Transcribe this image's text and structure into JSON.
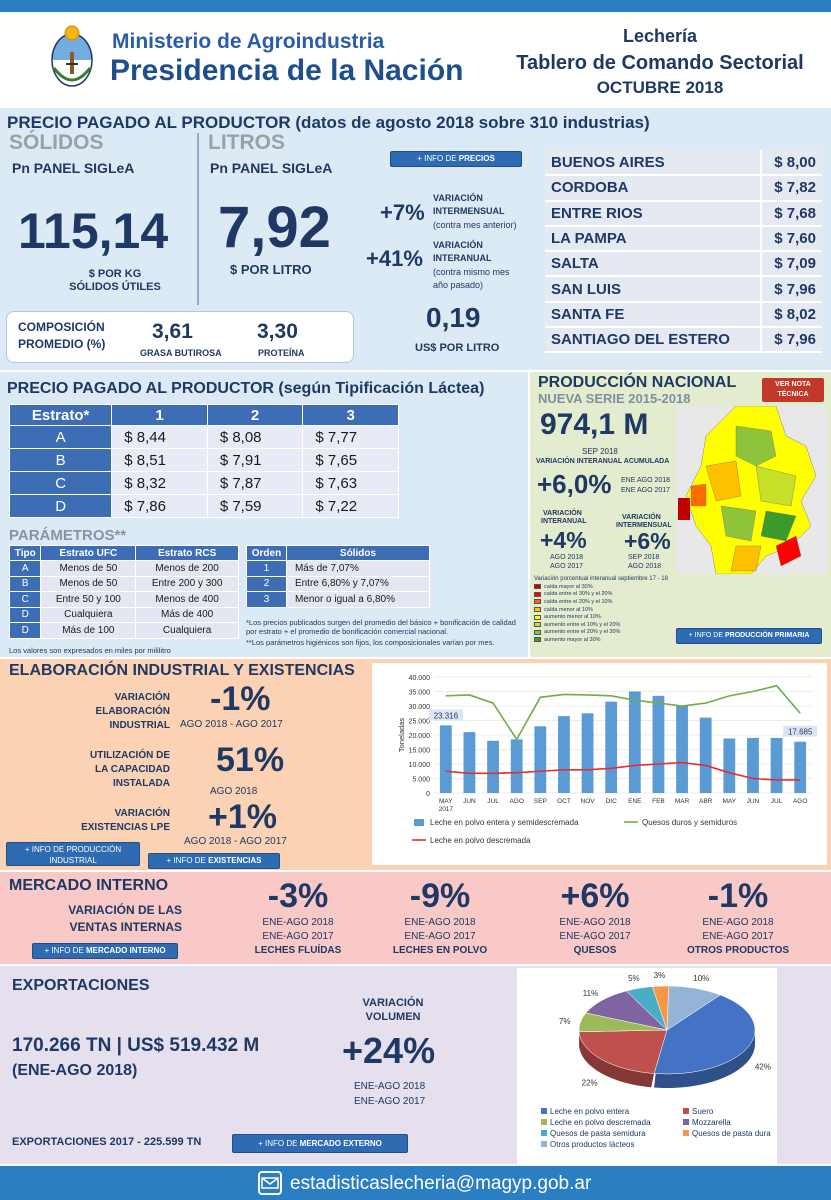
{
  "header": {
    "ministry_line1": "Ministerio de Agroindustria",
    "ministry_line2": "Presidencia de la Nación",
    "title1": "Lechería",
    "title2": "Tablero de Comando Sectorial",
    "title3": "OCTUBRE 2018"
  },
  "precio": {
    "heading": "PRECIO PAGADO AL PRODUCTOR (datos de agosto 2018 sobre 310 industrias)",
    "solidos_label": "SÓLIDOS",
    "solidos_sub": "Pn PANEL SIGLeA",
    "solidos_value": "115,14",
    "solidos_unit1": "$ POR KG",
    "solidos_unit2": "SÓLIDOS ÚTILES",
    "litros_label": "LITROS",
    "litros_sub": "Pn PANEL SIGLeA",
    "litros_value": "7,92",
    "litros_unit": "$ POR LITRO",
    "info_button_pre": "+ INFO DE ",
    "info_button_bold": "PRECIOS",
    "var1_value": "+7%",
    "var1_label1": "VARIACIÓN",
    "var1_label2": "INTERMENSUAL",
    "var1_label3": "(contra mes anterior)",
    "var2_value": "+41%",
    "var2_label1": "VARIACIÓN",
    "var2_label2": "INTERANUAL",
    "var2_label3": "(contra mismo mes",
    "var2_label4": "año pasado)",
    "usd_value": "0,19",
    "usd_label": "US$ POR LITRO",
    "comp_label1": "COMPOSICIÓN",
    "comp_label2": "PROMEDIO (%)",
    "grasa_value": "3,61",
    "grasa_label": "GRASA BUTIROSA",
    "prot_value": "3,30",
    "prot_label": "PROTEÍNA",
    "provinces": [
      {
        "name": "BUENOS AIRES",
        "price": "$ 8,00"
      },
      {
        "name": "CORDOBA",
        "price": "$ 7,82"
      },
      {
        "name": "ENTRE RIOS",
        "price": "$ 7,68"
      },
      {
        "name": "LA PAMPA",
        "price": "$ 7,60"
      },
      {
        "name": "SALTA",
        "price": "$ 7,09"
      },
      {
        "name": "SAN LUIS",
        "price": "$ 7,96"
      },
      {
        "name": "SANTA FE",
        "price": "$ 8,02"
      },
      {
        "name": "SANTIAGO DEL ESTERO",
        "price": "$ 7,96"
      }
    ]
  },
  "tipificacion": {
    "heading": "PRECIO PAGADO AL PRODUCTOR (según Tipificación Láctea)",
    "headers": [
      "Estrato*",
      "1",
      "2",
      "3"
    ],
    "rows": [
      [
        "A",
        "$ 8,44",
        "$ 8,08",
        "$ 7,77"
      ],
      [
        "B",
        "$ 8,51",
        "$ 7,91",
        "$ 7,65"
      ],
      [
        "C",
        "$ 8,32",
        "$ 7,87",
        "$ 7,63"
      ],
      [
        "D",
        "$ 7,86",
        "$ 7,59",
        "$ 7,22"
      ]
    ],
    "param_heading": "PARÁMETROS**",
    "param_headers": [
      "Tipo",
      "Estrato UFC",
      "Estrato RCS"
    ],
    "param_rows": [
      [
        "A",
        "Menos de 50",
        "Menos de 200"
      ],
      [
        "B",
        "Menos de 50",
        "Entre 200 y 300"
      ],
      [
        "C",
        "Entre 50 y 100",
        "Menos de 400"
      ],
      [
        "D",
        "Cualquiera",
        "Más de 400"
      ],
      [
        "D",
        "Más de 100",
        "Cualquiera"
      ]
    ],
    "solidos_headers": [
      "Orden",
      "Sólidos"
    ],
    "solidos_rows": [
      [
        "1",
        "Más de 7,07%"
      ],
      [
        "2",
        "Entre 6,80% y 7,07%"
      ],
      [
        "3",
        "Menor o igual a 6,80%"
      ]
    ],
    "note1": "*Los precios publicados surgen del promedio del básico + bonificación de calidad por estrato + el promedio de bonificación comercial nacional.",
    "note2": "**Los parámetros higiénicos son fijos, los composicionales varían por mes.",
    "note3": "Los valores son expresados en miles por mililitro"
  },
  "produccion": {
    "heading": "PRODUCCIÓN NACIONAL",
    "subheading": "NUEVA SERIE 2015-2018",
    "nota_button1": "VER NOTA",
    "nota_button2": "TÉCNICA",
    "value": "974,1 M",
    "value_period": "SEP 2018",
    "acum_label": "VARIACIÓN INTERANUAL ACUMULADA",
    "acum_value": "+6,0%",
    "acum_period1": "ENE AGO 2018",
    "acum_period2": "ENE AGO 2017",
    "inter_label1": "VARIACIÓN",
    "inter_label2": "INTERANUAL",
    "inter_value": "+4%",
    "inter_period1": "AGO 2018",
    "inter_period2": "AGO 2017",
    "mens_label1": "VARIACIÓN",
    "mens_label2": "INTERMENSUAL",
    "mens_value": "+6%",
    "mens_period1": "SEP 2018",
    "mens_period2": "AGO 2018",
    "legend_title": "Variación porcentual interanual septiembre 17 - 18",
    "legend": [
      {
        "label": "caída mayor al 30%",
        "color": "#c00000"
      },
      {
        "label": "caída entre el 30% y el 20%",
        "color": "#ff0000"
      },
      {
        "label": "caída entre el 20% y el 10%",
        "color": "#ff6a00"
      },
      {
        "label": "caída menor al 10%",
        "color": "#ffc000"
      },
      {
        "label": "aumento menor al 10%",
        "color": "#ffff00"
      },
      {
        "label": "aumento entre el 10% y el 20%",
        "color": "#c6e02a"
      },
      {
        "label": "aumento entre el 20% y el 30%",
        "color": "#8fc43a"
      },
      {
        "label": "aumento mayor al 30%",
        "color": "#3a9a2a"
      }
    ],
    "info_button_pre": "+ INFO DE ",
    "info_button_bold": "PRODUCCIÓN PRIMARIA"
  },
  "elaboracion": {
    "heading": "ELABORACIÓN INDUSTRIAL Y EXISTENCIAS",
    "var_label1": "VARIACIÓN",
    "var_label2": "ELABORACIÓN",
    "var_label3": "INDUSTRIAL",
    "var_value": "-1%",
    "var_period": "AGO 2018 -  AGO 2017",
    "util_label1": "UTILIZACIÓN DE",
    "util_label2": "LA CAPACIDAD",
    "util_label3": "INSTALADA",
    "util_value": "51%",
    "util_period": "AGO 2018",
    "exist_label1": "VARIACIÓN",
    "exist_label2": "EXISTENCIAS LPE",
    "exist_value": "+1%",
    "exist_period": "AGO 2018 - AGO 2017",
    "btn1_line1": "+ INFO DE PRODUCCIÓN",
    "btn1_line2": "INDUSTRIAL",
    "btn2_pre": "+ INFO DE ",
    "btn2_bold": "EXISTENCIAS"
  },
  "chart_data": {
    "type": "bar",
    "ylabel": "Toneladas",
    "ylim": [
      0,
      40000
    ],
    "yticks": [
      "0",
      "5.000",
      "10.000",
      "15.000",
      "20.000",
      "25.000",
      "30.000",
      "35.000",
      "40.000"
    ],
    "categories": [
      "MAY 2017",
      "JUN",
      "JUL",
      "AGO",
      "SEP",
      "OCT",
      "NOV",
      "DIC",
      "ENE",
      "FEB",
      "MAR",
      "ABR",
      "MAY",
      "JUN",
      "JUL",
      "AGO"
    ],
    "series": [
      {
        "name": "Leche en polvo entera y semidescremada",
        "type": "bar",
        "color": "#5b9bd5",
        "values": [
          23316,
          21000,
          18000,
          18500,
          23000,
          26500,
          27500,
          31500,
          35000,
          33500,
          30000,
          26000,
          18800,
          19000,
          19000,
          17685
        ]
      },
      {
        "name": "Quesos duros y semiduros",
        "type": "line",
        "color": "#70ad47",
        "values": [
          33500,
          33800,
          31000,
          18500,
          33000,
          34000,
          33800,
          33500,
          32000,
          31000,
          30000,
          31000,
          33500,
          35000,
          37000,
          27500
        ]
      },
      {
        "name": "Leche en polvo descremada",
        "type": "line",
        "color": "#e03030",
        "values": [
          7500,
          6800,
          6800,
          7000,
          7500,
          8000,
          8000,
          8500,
          9500,
          10000,
          10500,
          9500,
          7000,
          5000,
          4500,
          4500
        ]
      }
    ],
    "data_labels": [
      {
        "index": 0,
        "text": "23.316"
      },
      {
        "index": 15,
        "text": "17.685"
      }
    ],
    "legend_position": "bottom",
    "grid": true
  },
  "mercado": {
    "heading": "MERCADO INTERNO",
    "sub1": "VARIACIÓN DE LAS",
    "sub2": "VENTAS INTERNAS",
    "btn_pre": "+ INFO DE ",
    "btn_bold": "MERCADO INTERNO",
    "items": [
      {
        "value": "-3%",
        "p1": "ENE-AGO 2018",
        "p2": "ENE-AGO 2017",
        "name": "LECHES FLUÍDAS"
      },
      {
        "value": "-9%",
        "p1": "ENE-AGO 2018",
        "p2": "ENE-AGO 2017",
        "name": "LECHES EN POLVO"
      },
      {
        "value": "+6%",
        "p1": "ENE-AGO 2018",
        "p2": "ENE-AGO 2017",
        "name": "QUESOS"
      },
      {
        "value": "-1%",
        "p1": "ENE-AGO 2018",
        "p2": "ENE-AGO 2017",
        "name": "OTROS PRODUCTOS"
      }
    ]
  },
  "exportaciones": {
    "heading": "EXPORTACIONES",
    "main_value": "170.266 TN | US$ 519.432 M",
    "main_period": "(ENE-AGO 2018)",
    "var_label1": "VARIACIÓN",
    "var_label2": "VOLUMEN",
    "var_value": "+24%",
    "var_period1": "ENE-AGO 2018",
    "var_period2": "ENE-AGO 2017",
    "total_2017": "EXPORTACIONES 2017 - 225.599 TN",
    "btn_pre": "+ INFO DE ",
    "btn_bold": "MERCADO EXTERNO",
    "pie": [
      {
        "name": "Leche en polvo entera",
        "value": 42,
        "label": "42%",
        "color": "#4472c4"
      },
      {
        "name": "Suero",
        "value": 22,
        "label": "22%",
        "color": "#c0504d"
      },
      {
        "name": "Leche en polvo descremada",
        "value": 7,
        "label": "7%",
        "color": "#9bbb59"
      },
      {
        "name": "Mozzarella",
        "value": 11,
        "label": "11%",
        "color": "#8064a2"
      },
      {
        "name": "Quesos de pasta semidura",
        "value": 5,
        "label": "5%",
        "color": "#4bacc6"
      },
      {
        "name": "Quesos de pasta dura",
        "value": 3,
        "label": "3%",
        "color": "#f79646"
      },
      {
        "name": "Otros productos lácteos",
        "value": 10,
        "label": "10%",
        "color": "#95b3d7"
      }
    ]
  },
  "footer": {
    "email": "estadisticaslecheria@magyp.gob.ar"
  }
}
